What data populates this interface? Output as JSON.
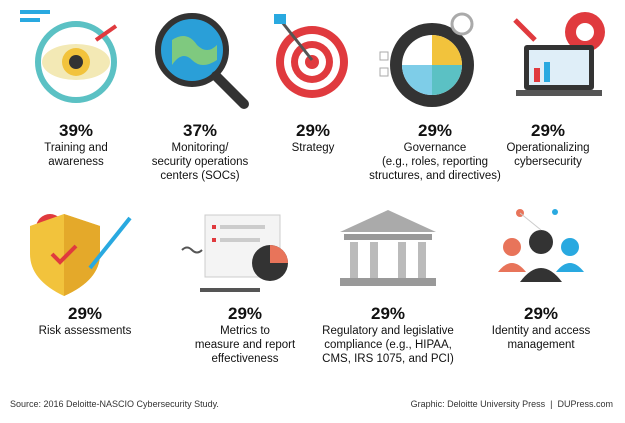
{
  "items": [
    {
      "percent": "39%",
      "label": [
        "Training and",
        "awareness"
      ]
    },
    {
      "percent": "37%",
      "label": [
        "Monitoring/",
        "security operations",
        "centers (SOCs)"
      ]
    },
    {
      "percent": "29%",
      "label": [
        "Strategy"
      ]
    },
    {
      "percent": "29%",
      "label": [
        "Governance",
        "(e.g., roles, reporting",
        "structures, and directives)"
      ]
    },
    {
      "percent": "29%",
      "label": [
        "Operationalizing",
        "cybersecurity"
      ]
    },
    {
      "percent": "29%",
      "label": [
        "Risk assessments"
      ]
    },
    {
      "percent": "29%",
      "label": [
        "Metrics to",
        "measure and report",
        "effectiveness"
      ]
    },
    {
      "percent": "29%",
      "label": [
        "Regulatory and legislative",
        "compliance (e.g., HIPAA,",
        "CMS, IRS 1075, and PCI)"
      ]
    },
    {
      "percent": "29%",
      "label": [
        "Identity and access",
        "management"
      ]
    }
  ],
  "footer": {
    "source": "Source: 2016 Deloitte-NASCIO Cybersecurity Study.",
    "credit": "Graphic: Deloitte University Press  |  DUPress.com"
  }
}
